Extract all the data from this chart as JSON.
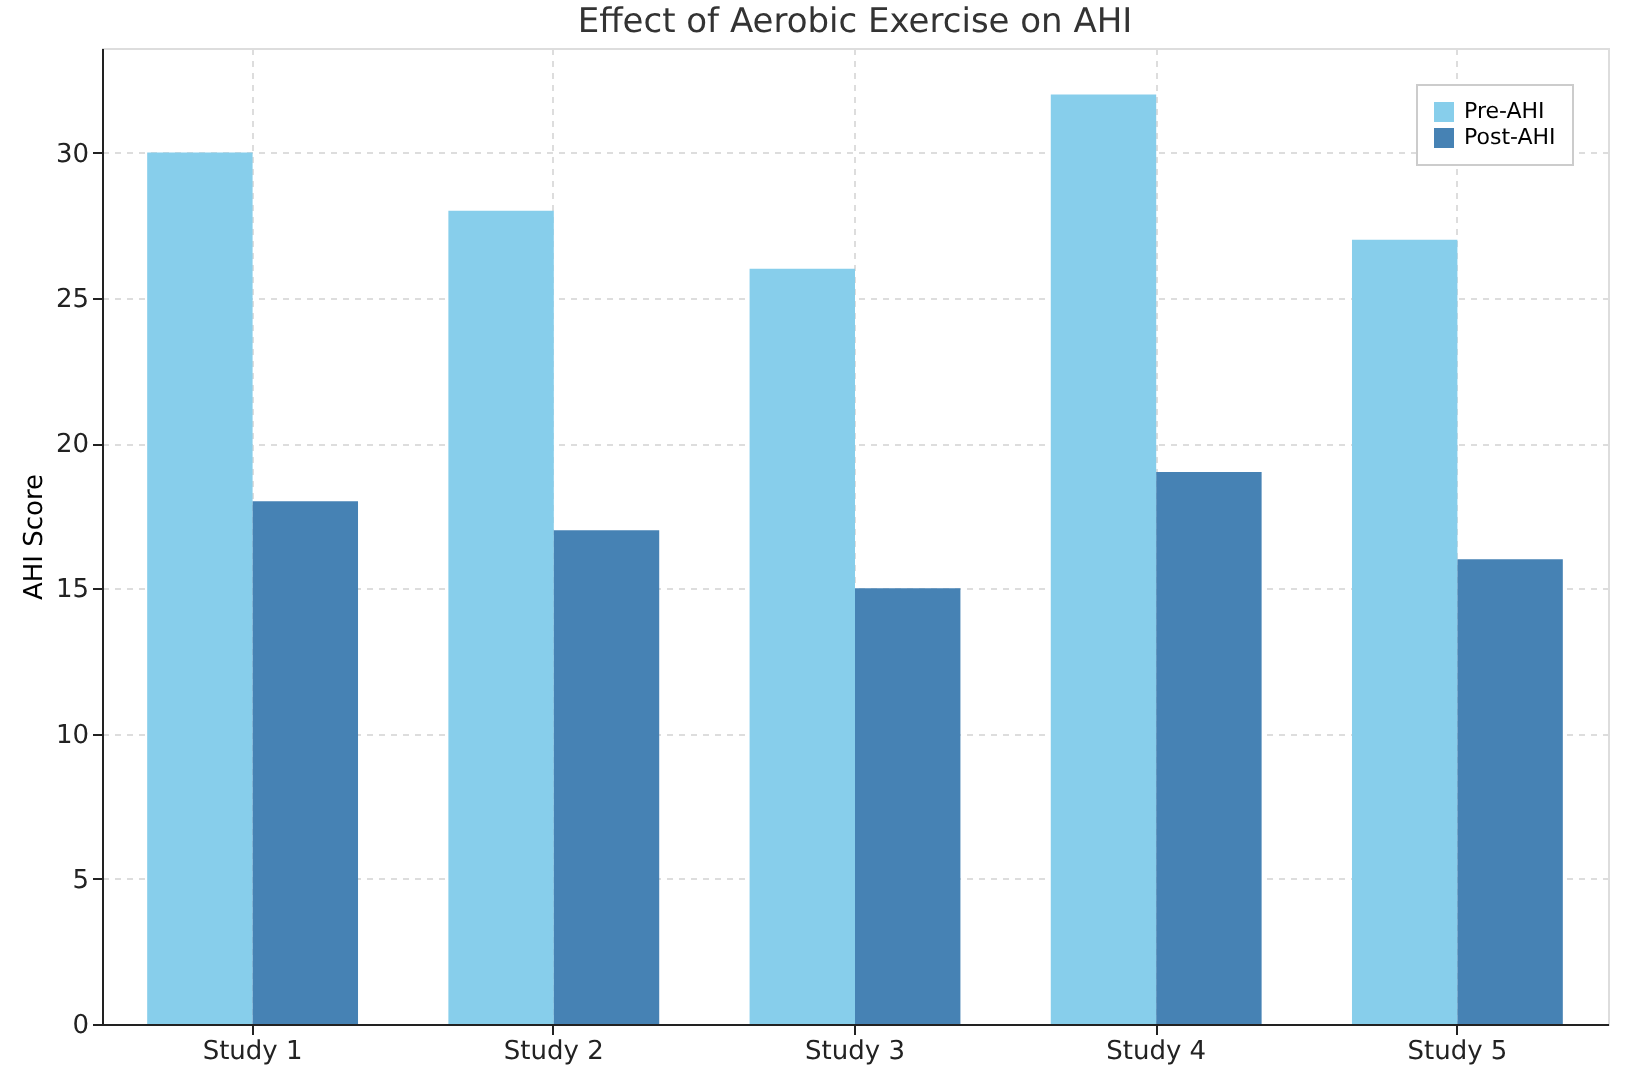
{
  "chart_data": {
    "type": "bar",
    "title": "Effect of Aerobic Exercise on AHI",
    "ylabel": "AHI Score",
    "categories": [
      "Study 1",
      "Study 2",
      "Study 3",
      "Study 4",
      "Study 5"
    ],
    "series": [
      {
        "name": "Pre-AHI",
        "color": "#87ceeb",
        "values": [
          30,
          28,
          26,
          32,
          27
        ]
      },
      {
        "name": "Post-AHI",
        "color": "#4682b4",
        "values": [
          18,
          17,
          15,
          19,
          16
        ]
      }
    ],
    "ylim": [
      0,
      33.6
    ],
    "yticks": [
      0,
      5,
      10,
      15,
      20,
      25,
      30
    ],
    "grid": true,
    "legend": "top right"
  }
}
